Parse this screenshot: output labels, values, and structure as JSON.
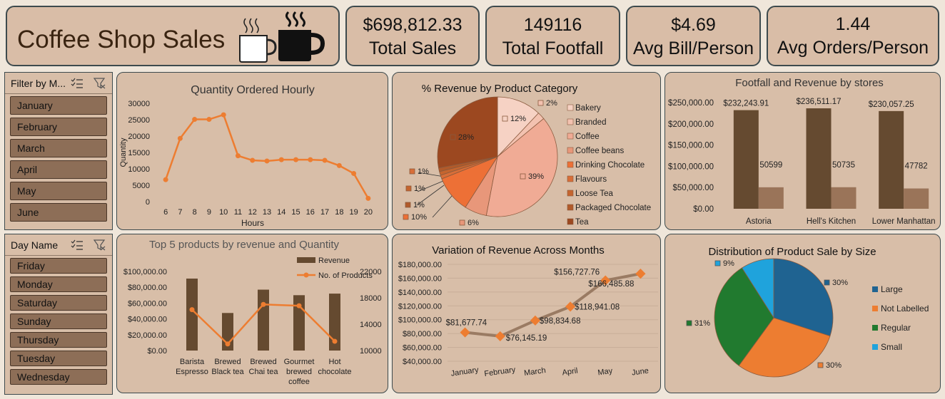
{
  "header": {
    "title": "Coffee Shop Sales"
  },
  "kpis": [
    {
      "value": "$698,812.33",
      "label": "Total Sales"
    },
    {
      "value": "149116",
      "label": "Total Footfall"
    },
    {
      "value": "$4.69",
      "label": "Avg Bill/Person"
    },
    {
      "value": "1.44",
      "label": "Avg Orders/Person"
    }
  ],
  "filters": {
    "month": {
      "title": "Filter by M...",
      "items": [
        "January",
        "February",
        "March",
        "April",
        "May",
        "June"
      ]
    },
    "day": {
      "title": "Day Name",
      "items": [
        "Friday",
        "Monday",
        "Saturday",
        "Sunday",
        "Thursday",
        "Tuesday",
        "Wednesday"
      ]
    }
  },
  "colors": {
    "accent": "#ed7d31",
    "brown": "#654a30",
    "light_brown": "#9a7459"
  },
  "chart_data": [
    {
      "id": "hourly",
      "type": "line",
      "title": "Quantity Ordered Hourly",
      "xlabel": "Hours",
      "ylabel": "Quantity",
      "x": [
        6,
        7,
        8,
        9,
        10,
        11,
        12,
        13,
        14,
        15,
        16,
        17,
        18,
        19,
        20
      ],
      "y": [
        6700,
        19300,
        25100,
        25100,
        26500,
        14000,
        12600,
        12400,
        12800,
        12800,
        12800,
        12600,
        11000,
        8600,
        1000
      ],
      "ylim": [
        0,
        30000
      ],
      "yticks": [
        0,
        5000,
        10000,
        15000,
        20000,
        25000,
        30000
      ]
    },
    {
      "id": "category",
      "type": "pie",
      "title": "% Revenue by Product Category",
      "labels": [
        "Bakery",
        "Branded",
        "Coffee",
        "Coffee beans",
        "Drinking Chocolate",
        "Flavours",
        "Loose Tea",
        "Packaged Chocolate",
        "Tea"
      ],
      "values": [
        12,
        2,
        39,
        6,
        10,
        1,
        1,
        1,
        28
      ],
      "display_labels": [
        "12%",
        "2%",
        "39%",
        "6%",
        "10%",
        "1%",
        "1%",
        "1%",
        "28%"
      ],
      "colors": [
        "#f6d2c4",
        "#f3c2b0",
        "#f0ab95",
        "#e8977a",
        "#ed7036",
        "#d86e38",
        "#c5652f",
        "#b15a2a",
        "#9c4820"
      ],
      "legend": "right"
    },
    {
      "id": "stores",
      "type": "bar",
      "title": "Footfall and Revenue  by stores",
      "categories": [
        "Astoria",
        "Hell's Kitchen",
        "Lower Manhattan"
      ],
      "series": [
        {
          "values": [
            232243.91,
            236511.17,
            230057.25
          ],
          "labels": [
            "$232,243.91",
            "$236,511.17",
            "$230,057.25"
          ]
        },
        {
          "values": [
            50599,
            50735,
            47782
          ],
          "labels": [
            "50599",
            "50735",
            "47782"
          ]
        }
      ],
      "ylim": [
        0,
        250000
      ],
      "yticks": [
        "$0.00",
        "$50,000.00",
        "$100,000.00",
        "$150,000.00",
        "$200,000.00",
        "$250,000.00"
      ]
    },
    {
      "id": "top5",
      "type": "bar",
      "title": "Top 5 products by revenue and Quantity",
      "categories": [
        "Barista Espresso",
        "Brewed Black tea",
        "Brewed Chai tea",
        "Gourmet brewed coffee",
        "Hot chocolate"
      ],
      "category_lines": [
        [
          "Barista",
          "Espresso"
        ],
        [
          "Brewed",
          "Black tea"
        ],
        [
          "Brewed",
          "Chai tea"
        ],
        [
          "Gourmet",
          "brewed",
          "coffee"
        ],
        [
          "Hot",
          "chocolate"
        ]
      ],
      "series": [
        {
          "name": "Revenue",
          "type": "bar",
          "values": [
            91000,
            47500,
            77000,
            70000,
            72000
          ]
        },
        {
          "name": "No. of Products",
          "type": "line",
          "values": [
            16200,
            11000,
            17000,
            16800,
            11400
          ]
        }
      ],
      "ylim": [
        0,
        100000
      ],
      "yticks": [
        "$0.00",
        "$20,000.00",
        "$40,000.00",
        "$60,000.00",
        "$80,000.00",
        "$100,000.00"
      ],
      "y2lim": [
        10000,
        22000
      ],
      "y2ticks": [
        "10000",
        "14000",
        "18000",
        "22000"
      ],
      "legend": "top-right"
    },
    {
      "id": "months",
      "type": "line",
      "title": "Variation of Revenue Across Months",
      "x": [
        "January",
        "February",
        "March",
        "April",
        "May",
        "June"
      ],
      "y": [
        81677.74,
        76145.19,
        98834.68,
        118941.08,
        156727.76,
        166485.88
      ],
      "labels": [
        "$81,677.74",
        "$76,145.19",
        "$98,834.68",
        "$118,941.08",
        "$156,727.76",
        "$166,485.88"
      ],
      "ylim": [
        40000,
        180000
      ],
      "yticks": [
        "$40,000.00",
        "$60,000.00",
        "$80,000.00",
        "$100,000.00",
        "$120,000.00",
        "$140,000.00",
        "$160,000.00",
        "$180,000.00"
      ]
    },
    {
      "id": "size",
      "type": "pie",
      "title": "Distribution of Product Sale by Size",
      "labels": [
        "Large",
        "Not Labelled",
        "Regular",
        "Small"
      ],
      "values": [
        30,
        30,
        31,
        9
      ],
      "display_labels": [
        "30%",
        "30%",
        "31%",
        "9%"
      ],
      "colors": [
        "#1f6391",
        "#ed7d31",
        "#217a2f",
        "#1fa3dc"
      ],
      "legend": "right"
    }
  ]
}
